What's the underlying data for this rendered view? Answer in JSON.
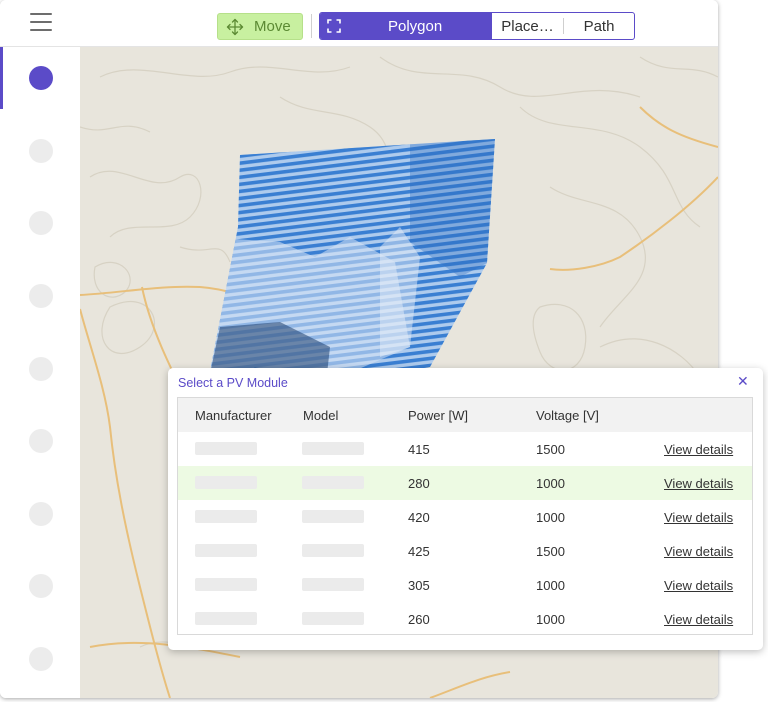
{
  "toolbar": {
    "move_label": "Move",
    "tools": [
      {
        "label": "Polygon",
        "icon": "select-frame-icon",
        "selected": true
      },
      {
        "label": "Place…"
      },
      {
        "label": "Path"
      }
    ]
  },
  "sidebar": {
    "items": [
      {
        "active": true
      },
      {},
      {},
      {},
      {},
      {},
      {},
      {},
      {}
    ]
  },
  "colors": {
    "accent": "#5b4bc8",
    "move_bg": "#c8f0a0",
    "highlight_row": "#edfae3",
    "polygon_fill": "#4a8fd8"
  },
  "panel": {
    "title": "Select a PV Module",
    "close_icon": "close-icon",
    "columns": [
      "Manufacturer",
      "Model",
      "Power [W]",
      "Voltage [V]"
    ],
    "rows": [
      {
        "power": "415",
        "voltage": "1500",
        "action": "View details"
      },
      {
        "power": "280",
        "voltage": "1000",
        "action": "View details",
        "highlighted": true
      },
      {
        "power": "420",
        "voltage": "1000",
        "action": "View details"
      },
      {
        "power": "425",
        "voltage": "1500",
        "action": "View details"
      },
      {
        "power": "305",
        "voltage": "1000",
        "action": "View details"
      },
      {
        "power": "260",
        "voltage": "1000",
        "action": "View details"
      }
    ]
  }
}
